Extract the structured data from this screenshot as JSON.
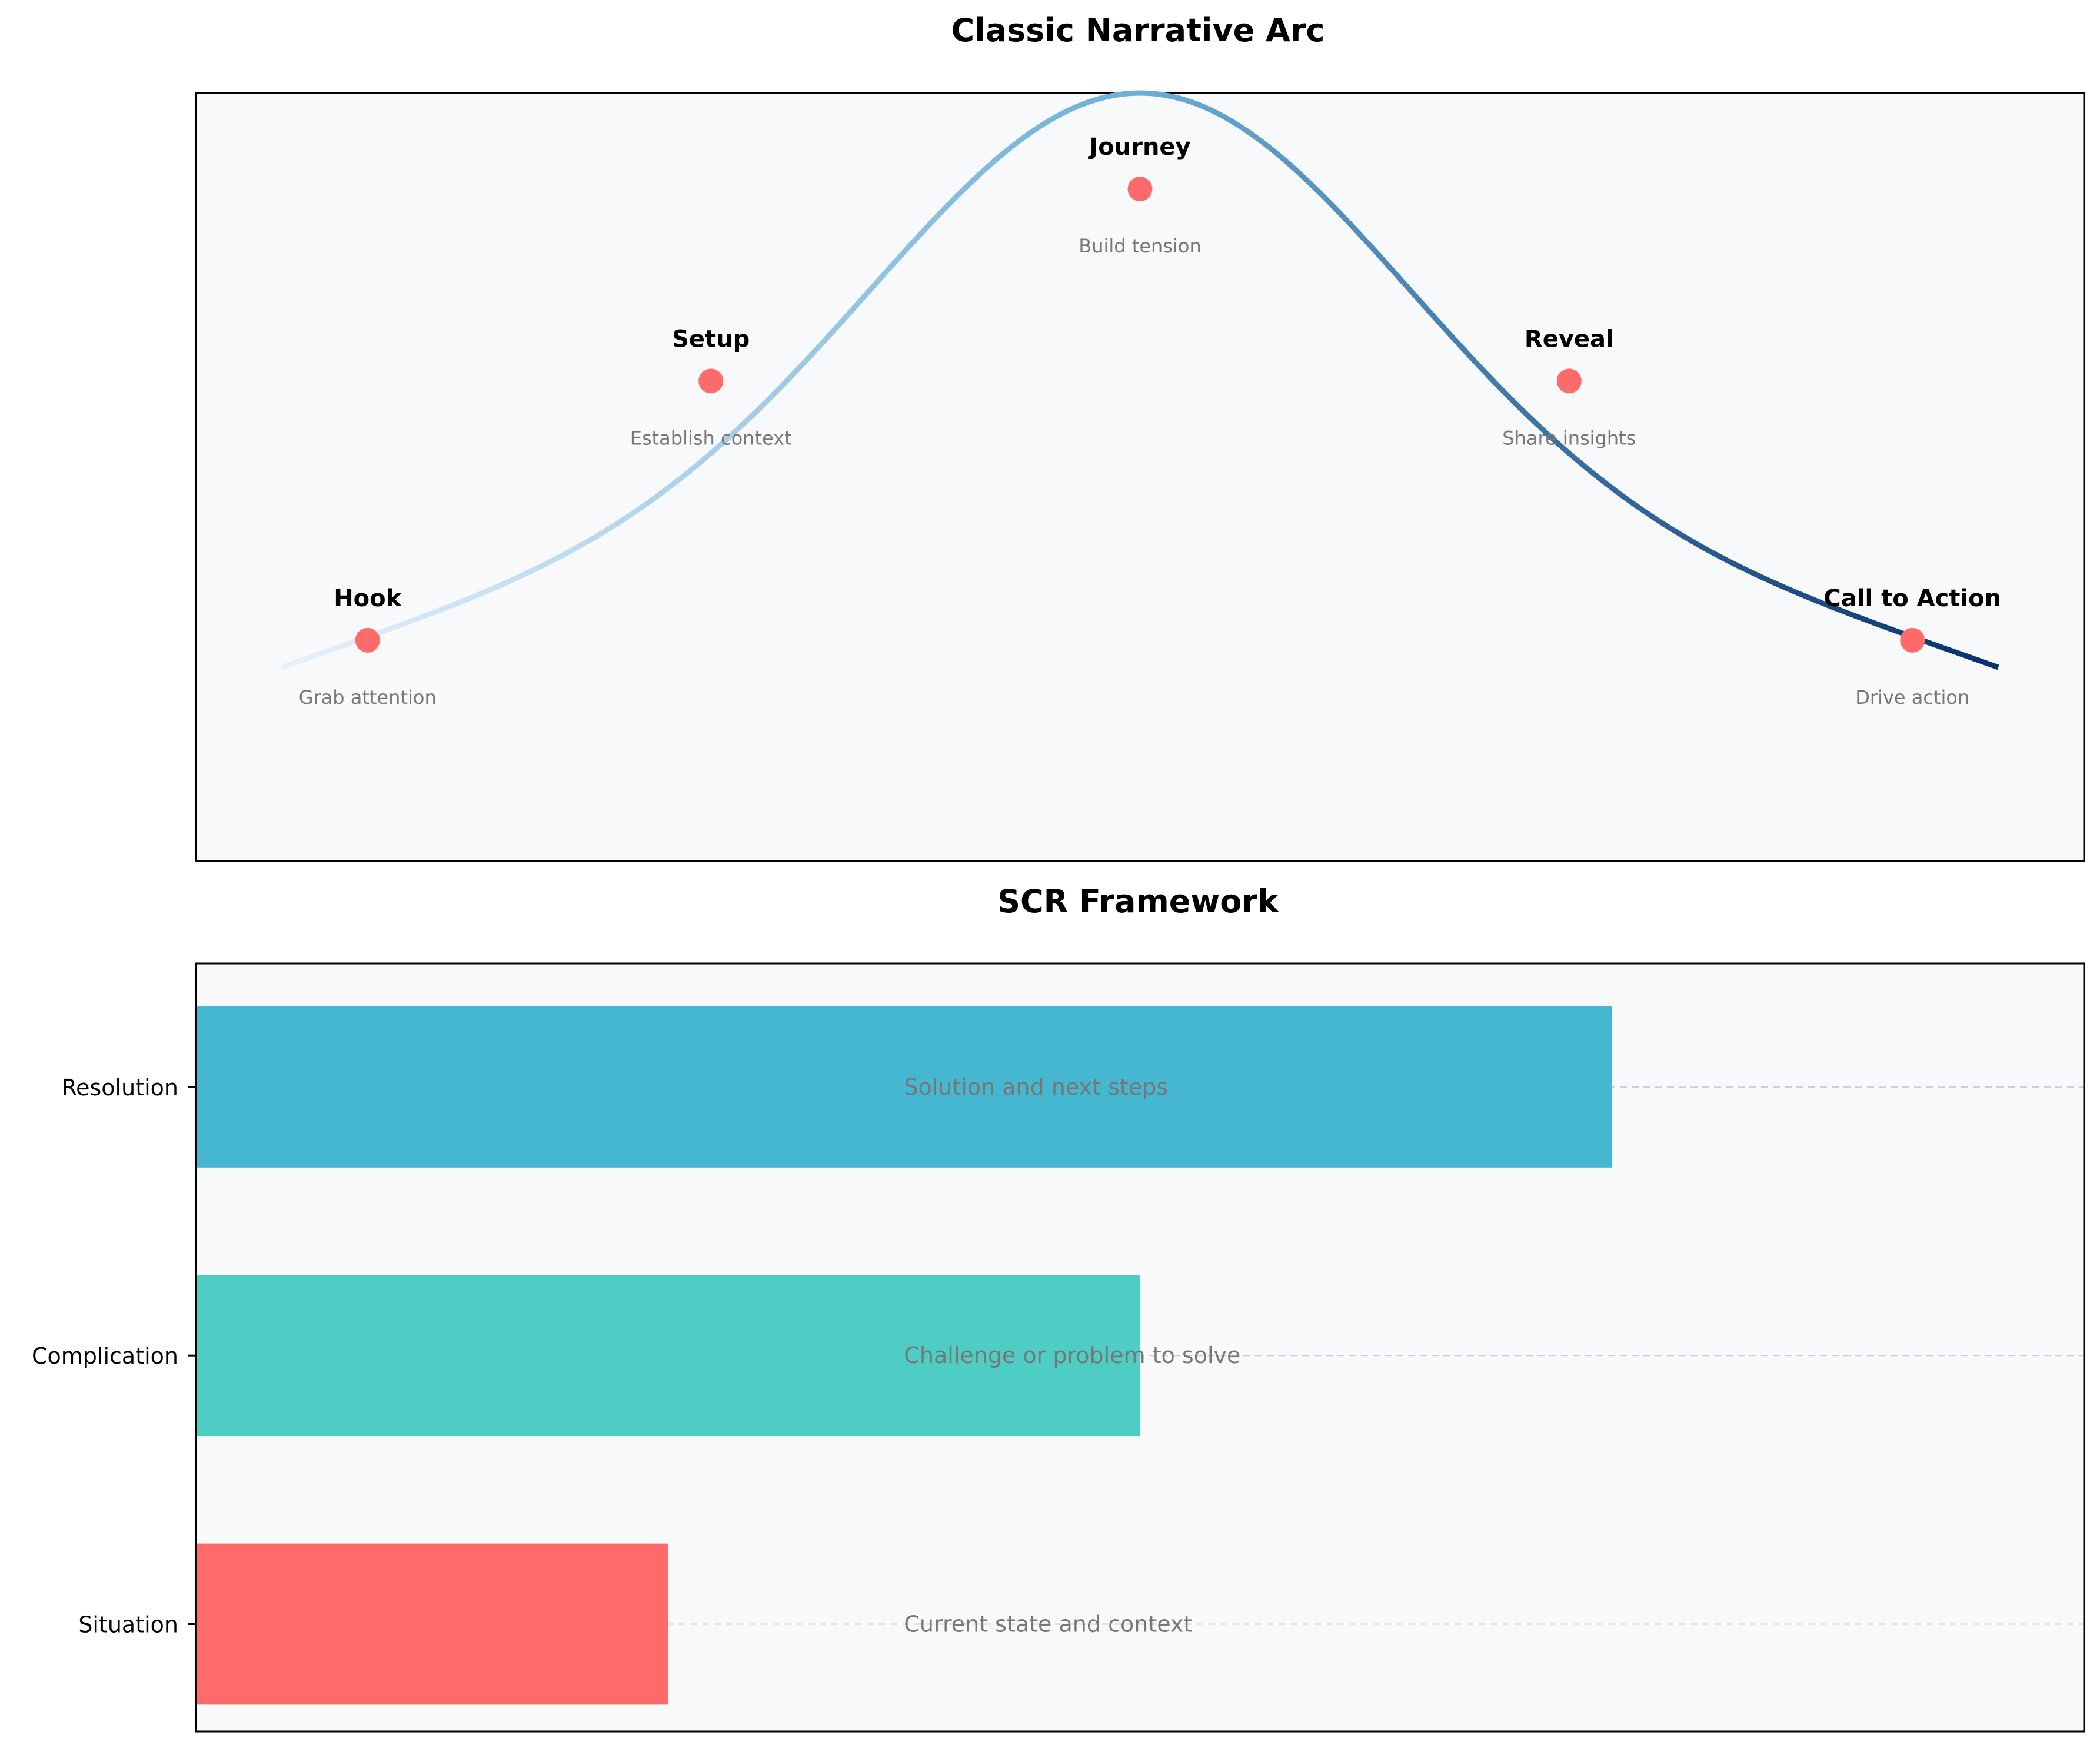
{
  "chart_data": [
    {
      "type": "line",
      "title": "Classic Narrative Arc",
      "xlabel": "",
      "ylabel": "",
      "axes_visible": false,
      "grid": false,
      "xlim": [
        -0.5,
        10.5
      ],
      "ylim": [
        -1.0,
        3.0
      ],
      "curve": {
        "x_range": [
          0,
          10
        ],
        "color_gradient": [
          "#e8f1fb",
          "#08306b"
        ]
      },
      "points": [
        {
          "x": 0.5,
          "y": 0.15,
          "label": "Hook",
          "description": "Grab attention"
        },
        {
          "x": 2.5,
          "y": 1.5,
          "label": "Setup",
          "description": "Establish context"
        },
        {
          "x": 5.0,
          "y": 2.5,
          "label": "Journey",
          "description": "Build tension"
        },
        {
          "x": 7.5,
          "y": 1.5,
          "label": "Reveal",
          "description": "Share insights"
        },
        {
          "x": 9.5,
          "y": 0.15,
          "label": "Call to Action",
          "description": "Drive action"
        }
      ],
      "point_color": "#ff6b6b",
      "background": "#f8f9fa"
    },
    {
      "type": "bar",
      "orientation": "horizontal",
      "title": "SCR Framework",
      "xlabel": "",
      "ylabel": "",
      "xlim": [
        0,
        10
      ],
      "grid": "horizontal-dashed",
      "background": "#f8f9fa",
      "categories": [
        "Situation",
        "Complication",
        "Resolution"
      ],
      "values": [
        2.5,
        5.0,
        7.5
      ],
      "colors": [
        "#ff6b6b",
        "#4ecdc4",
        "#45b7d1"
      ],
      "descriptions": [
        "Current state and context",
        "Challenge or problem to solve",
        "Solution and next steps"
      ],
      "description_x": 3.75
    }
  ]
}
